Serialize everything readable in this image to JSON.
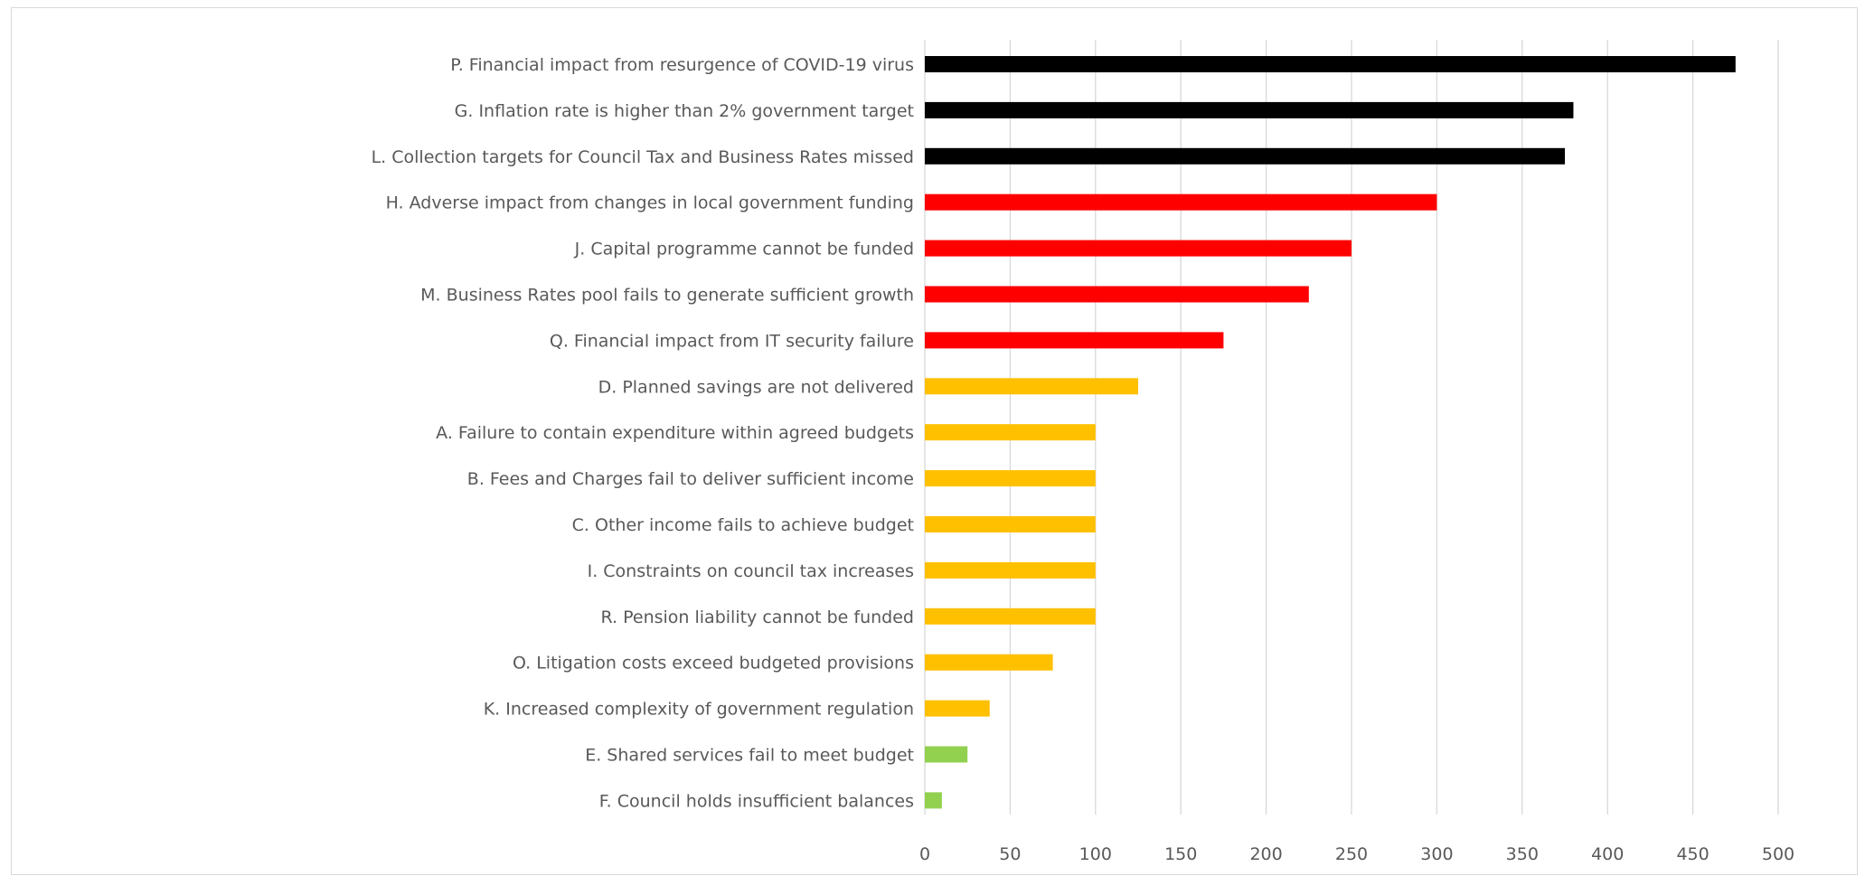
{
  "chart_data": {
    "type": "bar",
    "orientation": "horizontal",
    "title": "",
    "xlabel": "",
    "ylabel": "",
    "xlim": [
      0,
      500
    ],
    "x_ticks": [
      0,
      50,
      100,
      150,
      200,
      250,
      300,
      350,
      400,
      450,
      500
    ],
    "grid": "vertical",
    "legend": "none",
    "colors": {
      "black": "#000000",
      "red": "#ff0000",
      "amber": "#ffc000",
      "green": "#92d050"
    },
    "categories": [
      "P. Financial impact from resurgence of COVID-19 virus",
      "G. Inflation rate is higher than 2% government target",
      "L. Collection targets for Council Tax and Business Rates missed",
      "H. Adverse impact from changes in local government funding",
      "J. Capital programme cannot be funded",
      "M. Business Rates pool fails to generate sufficient growth",
      "Q. Financial impact from IT security failure",
      "D. Planned savings are not delivered",
      "A. Failure to contain expenditure within agreed budgets",
      "B. Fees and Charges fail to deliver sufficient income",
      "C. Other income fails to achieve budget",
      "I. Constraints on council tax increases",
      "R. Pension liability cannot be funded",
      "O. Litigation costs exceed budgeted provisions",
      "K. Increased complexity of government regulation",
      "E. Shared services fail to meet budget",
      "F. Council holds insufficient balances"
    ],
    "values": [
      475,
      380,
      375,
      300,
      250,
      225,
      175,
      125,
      100,
      100,
      100,
      100,
      100,
      75,
      38,
      25,
      10
    ],
    "bar_colors": [
      "#000000",
      "#000000",
      "#000000",
      "#ff0000",
      "#ff0000",
      "#ff0000",
      "#ff0000",
      "#ffc000",
      "#ffc000",
      "#ffc000",
      "#ffc000",
      "#ffc000",
      "#ffc000",
      "#ffc000",
      "#ffc000",
      "#92d050",
      "#92d050"
    ]
  }
}
